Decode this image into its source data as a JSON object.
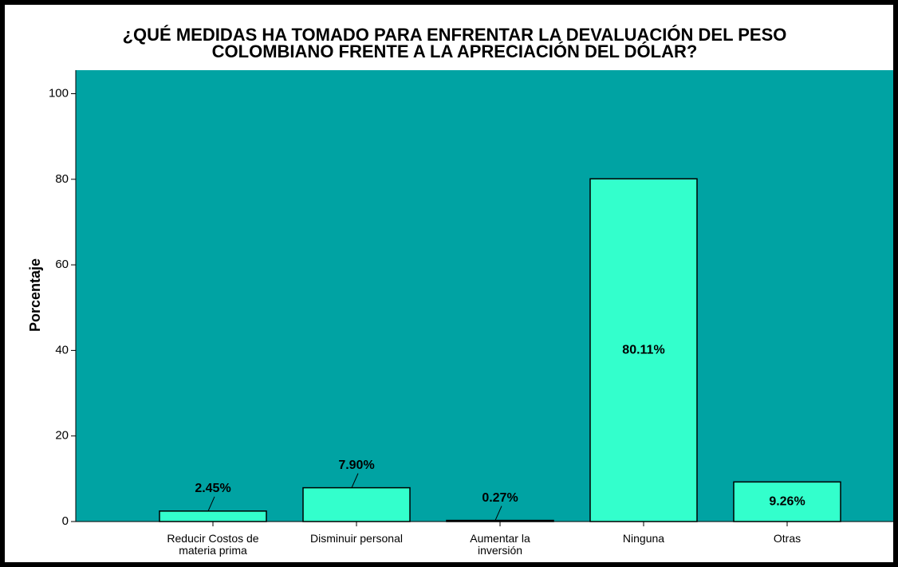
{
  "chart_data": {
    "type": "bar",
    "title": "¿QUÉ MEDIDAS HA TOMADO PARA ENFRENTAR LA DEVALUACIÓN DEL PESO\nCOLOMBIANO FRENTE A LA APRECIACIÓN DEL DÓLAR?",
    "y_label": "Porcentaje",
    "categories": [
      "Reducir Costos de\nmateria prima",
      "Disminuir personal",
      "Aumentar la\ninversión",
      "Ninguna",
      "Otras"
    ],
    "values": [
      2.45,
      7.9,
      0.27,
      80.11,
      9.26
    ],
    "value_labels": [
      "2.45%",
      "7.90%",
      "0.27%",
      "80.11%",
      "9.26%"
    ],
    "color": "#33ffcc",
    "background": "#00a3a3",
    "ylim": [
      0,
      105.5
    ],
    "yticks": [
      0,
      20,
      40,
      60,
      80,
      100
    ],
    "grid": false
  }
}
